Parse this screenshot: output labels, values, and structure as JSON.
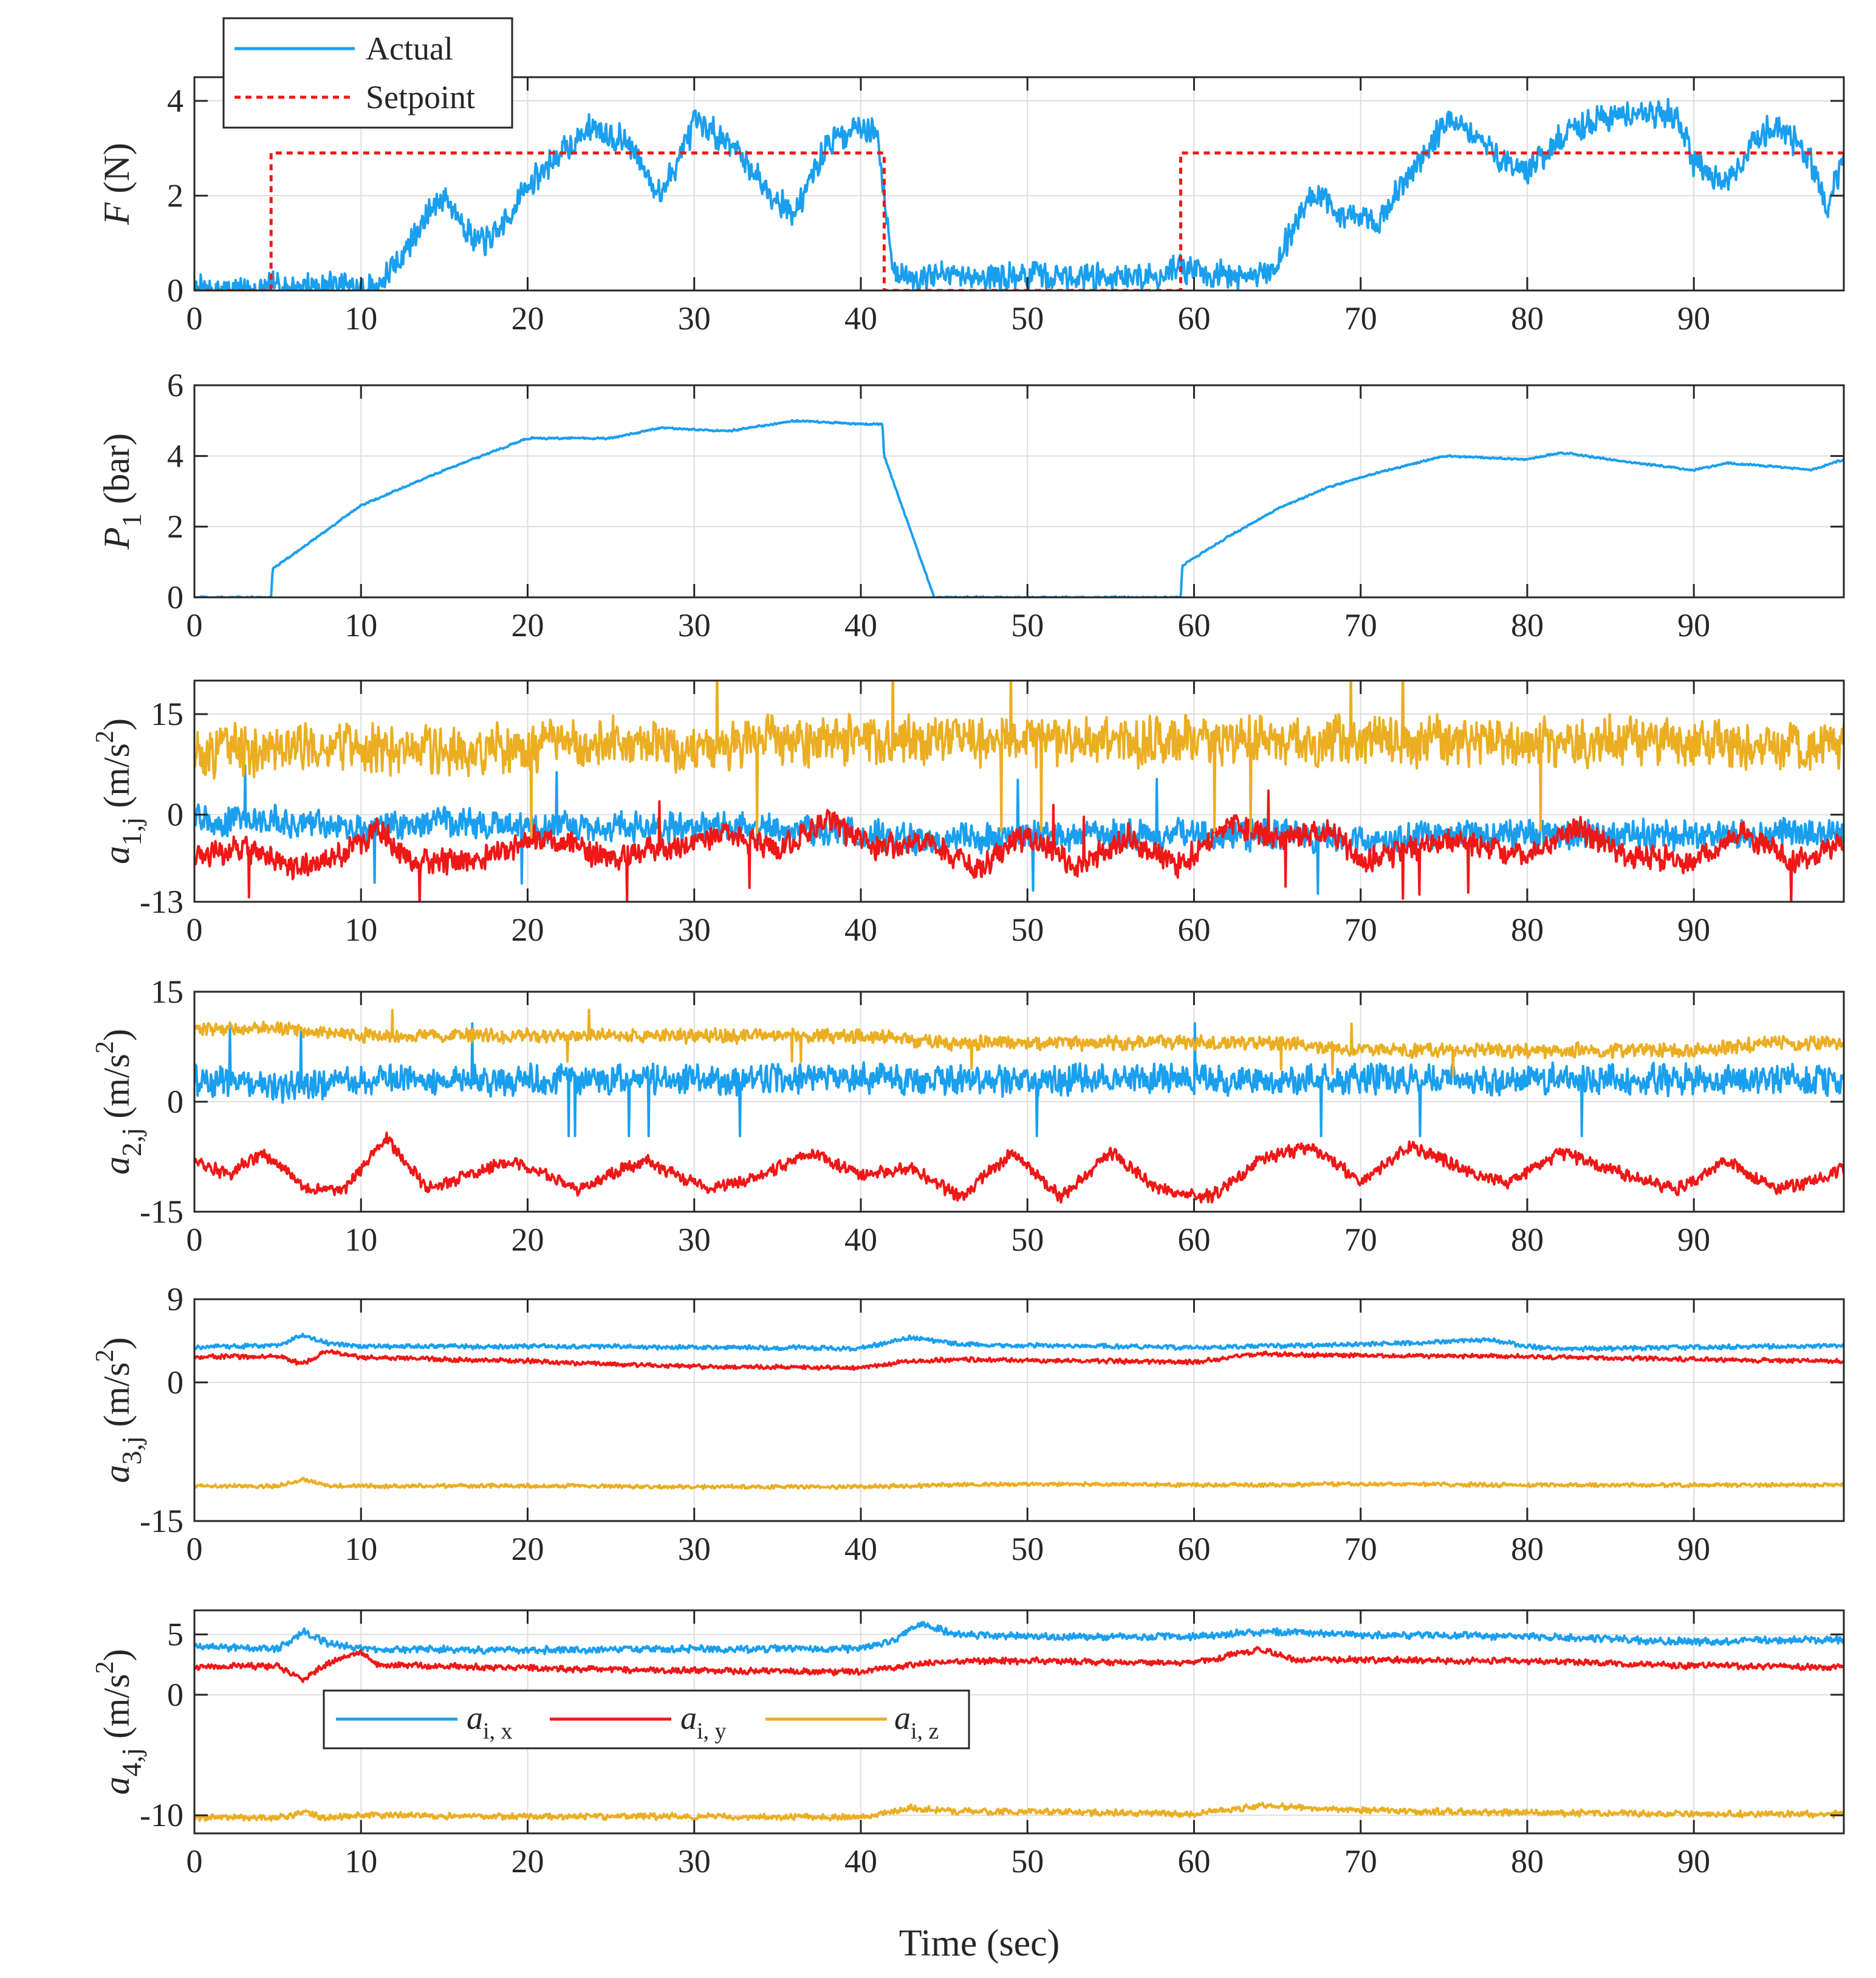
{
  "figure": {
    "xlabel": "Time (sec)",
    "x_ticks": [
      0,
      10,
      20,
      30,
      40,
      50,
      60,
      70,
      80,
      90
    ],
    "xlim": [
      0,
      99
    ]
  },
  "colors": {
    "blue": "#1a9fef",
    "red": "#f01717",
    "yellow": "#ebae22",
    "grid": "#dedede",
    "axes": "#262626"
  },
  "chart_data": [
    {
      "type": "line",
      "ylabel": {
        "main": "F",
        "unit": " (N)"
      },
      "ylim": [
        0,
        4.5
      ],
      "y_ticks": [
        0,
        2,
        4
      ],
      "xlim": [
        0,
        99
      ],
      "grid": true,
      "legend": {
        "placement": "top-left",
        "entries": [
          "Actual",
          "Setpoint"
        ]
      },
      "series": [
        {
          "name": "Actual",
          "color": "blue",
          "style": "solid",
          "noise": 0.35,
          "x": [
            0,
            4,
            5,
            9,
            10,
            11,
            12,
            14,
            15,
            17,
            18,
            20,
            22,
            24,
            26,
            28,
            30,
            32,
            34,
            36,
            38,
            40,
            41,
            42,
            45,
            50,
            55,
            58,
            59,
            62,
            64,
            65,
            67,
            69,
            71,
            73,
            75,
            76,
            78,
            80,
            82,
            84,
            87,
            89,
            90,
            92,
            94,
            95,
            97,
            98,
            99
          ],
          "y": [
            0,
            0,
            0.1,
            0.1,
            0,
            0.1,
            0.5,
            1.6,
            2.0,
            1.0,
            1.1,
            2.2,
            2.9,
            3.5,
            3.1,
            2.0,
            3.5,
            3.2,
            2.3,
            1.6,
            3.1,
            3.5,
            3.3,
            0.3,
            0.3,
            0.3,
            0.3,
            0.3,
            0.5,
            0.3,
            0.3,
            0.6,
            2.1,
            1.6,
            1.4,
            2.5,
            3.5,
            3.5,
            2.9,
            2.5,
            3.2,
            3.6,
            3.8,
            3.7,
            2.7,
            2.2,
            3.3,
            3.5,
            2.8,
            1.7,
            2.8
          ]
        },
        {
          "name": "Setpoint",
          "color": "red",
          "style": "dotted",
          "noise": 0,
          "x": [
            0,
            4.6,
            4.6,
            41.4,
            41.4,
            59.2,
            59.2,
            99
          ],
          "y": [
            0,
            0,
            2.9,
            2.9,
            0,
            0,
            2.9,
            2.9
          ]
        }
      ]
    },
    {
      "type": "line",
      "ylabel": {
        "main": "P",
        "sub": "1",
        "unit": " (bar)"
      },
      "ylim": [
        0,
        6
      ],
      "y_ticks": [
        0,
        2,
        4,
        6
      ],
      "xlim": [
        0,
        99
      ],
      "grid": true,
      "series": [
        {
          "name": "",
          "color": "blue",
          "style": "solid",
          "noise": 0.03,
          "x": [
            0,
            4.6,
            4.7,
            10,
            15,
            20,
            25,
            28,
            32,
            36,
            40,
            41.3,
            41.4,
            44.4,
            59.2,
            59.3,
            62,
            65,
            68,
            70,
            75,
            80,
            82,
            85,
            90,
            92,
            95,
            97,
            99
          ],
          "y": [
            0,
            0,
            0.8,
            2.6,
            3.6,
            4.5,
            4.5,
            4.8,
            4.7,
            5.0,
            4.9,
            4.9,
            4.0,
            0,
            0,
            0.9,
            1.7,
            2.5,
            3.1,
            3.4,
            4.0,
            3.9,
            4.1,
            3.9,
            3.6,
            3.8,
            3.7,
            3.6,
            3.9
          ]
        }
      ]
    },
    {
      "type": "line",
      "ylabel": {
        "main": "a",
        "sub": "1,j",
        "unit": " (m/s",
        "sup": "2",
        "close": ")"
      },
      "ylim": [
        -13,
        20
      ],
      "y_ticks": [
        -13,
        0,
        15
      ],
      "tick_labels": [
        "-13",
        "0",
        "15"
      ],
      "xlim": [
        0,
        99
      ],
      "grid": true,
      "series": [
        {
          "name": "",
          "color": "blue",
          "style": "solid",
          "noise": 2.6,
          "x": [
            0,
            5,
            10,
            15,
            20,
            25,
            30,
            35,
            40,
            45,
            50,
            55,
            60,
            65,
            70,
            75,
            80,
            85,
            90,
            95,
            99
          ],
          "y": [
            -1,
            -1,
            -2,
            -1,
            -2,
            -2,
            -2,
            -2,
            -3,
            -4,
            -3,
            -3,
            -3,
            -3,
            -4,
            -3,
            -3,
            -3,
            -3,
            -3,
            -3
          ]
        },
        {
          "name": "",
          "color": "red",
          "style": "solid",
          "noise": 2.2,
          "x": [
            0,
            3,
            6,
            9,
            11,
            13,
            17,
            21,
            25,
            28,
            32,
            35,
            38,
            41,
            44,
            47,
            50,
            53,
            56,
            59,
            62,
            65,
            68,
            70,
            75,
            80,
            83,
            86,
            90,
            93,
            96,
            99
          ],
          "y": [
            -6,
            -5,
            -8,
            -6,
            -2,
            -7,
            -7,
            -3,
            -7,
            -5,
            -3,
            -5,
            -1,
            -5,
            -4,
            -8,
            -3,
            -8,
            -3,
            -8,
            -1,
            -4,
            -2,
            -7,
            -4,
            -6,
            -2,
            -6,
            -7,
            -3,
            -7,
            -4
          ]
        },
        {
          "name": "",
          "color": "yellow",
          "style": "solid",
          "noise": 4.2,
          "x": [
            0,
            5,
            10,
            15,
            20,
            25,
            30,
            35,
            40,
            45,
            50,
            55,
            60,
            65,
            70,
            75,
            80,
            85,
            90,
            95,
            99
          ],
          "y": [
            9,
            10,
            10,
            9,
            10,
            11,
            10,
            11,
            11,
            11,
            11,
            11,
            11,
            11,
            11,
            11,
            11,
            11,
            11,
            10,
            11
          ]
        }
      ]
    },
    {
      "type": "line",
      "ylabel": {
        "main": "a",
        "sub": "2,j",
        "unit": " (m/s",
        "sup": "2",
        "close": ")"
      },
      "ylim": [
        -15,
        15
      ],
      "y_ticks": [
        -15,
        0,
        15
      ],
      "tick_labels": [
        "-15",
        "0",
        "15"
      ],
      "xlim": [
        0,
        99
      ],
      "grid": true,
      "series": [
        {
          "name": "",
          "color": "blue",
          "style": "solid",
          "noise": 2.4,
          "x": [
            0,
            5,
            10,
            15,
            20,
            25,
            30,
            35,
            40,
            45,
            50,
            55,
            60,
            65,
            70,
            75,
            80,
            85,
            90,
            95,
            99
          ],
          "y": [
            3,
            2,
            3,
            3,
            3,
            3,
            3,
            3,
            3,
            3,
            3,
            3,
            3,
            3,
            3,
            3,
            3,
            3,
            3,
            3,
            3
          ]
        },
        {
          "name": "",
          "color": "red",
          "style": "solid",
          "noise": 1.0,
          "x": [
            0,
            2,
            4,
            7,
            9,
            11.5,
            14,
            19,
            23,
            27,
            31,
            34,
            37,
            40,
            43,
            46,
            49,
            52,
            55,
            58,
            61,
            64,
            67,
            70,
            73,
            77,
            79,
            82,
            86,
            89,
            92,
            95,
            97,
            99
          ],
          "y": [
            -8,
            -10,
            -7,
            -12,
            -12,
            -5,
            -12,
            -8,
            -12,
            -8,
            -12,
            -10,
            -7,
            -10,
            -9,
            -13,
            -7,
            -13,
            -7,
            -12,
            -13,
            -8,
            -6,
            -11,
            -6,
            -10,
            -11,
            -7,
            -10,
            -12,
            -8,
            -12,
            -11,
            -9
          ]
        },
        {
          "name": "",
          "color": "yellow",
          "style": "solid",
          "noise": 1.1,
          "x": [
            0,
            5,
            10,
            15,
            20,
            25,
            30,
            35,
            40,
            45,
            50,
            55,
            60,
            65,
            70,
            75,
            80,
            85,
            90,
            95,
            99
          ],
          "y": [
            10,
            10,
            9,
            9,
            9,
            9,
            9,
            9,
            9,
            8,
            8,
            8,
            8,
            8,
            7,
            7,
            7,
            7,
            7,
            8,
            8
          ]
        }
      ]
    },
    {
      "type": "line",
      "ylabel": {
        "main": "a",
        "sub": "3,j",
        "unit": " (m/s",
        "sup": "2",
        "close": ")"
      },
      "ylim": [
        -15,
        9
      ],
      "y_ticks": [
        -15,
        0,
        9
      ],
      "tick_labels": [
        "-15",
        "0",
        "9"
      ],
      "xlim": [
        0,
        99
      ],
      "grid": true,
      "series": [
        {
          "name": "",
          "color": "blue",
          "style": "solid",
          "noise": 0.28,
          "x": [
            0,
            5,
            6.5,
            8,
            10,
            20,
            30,
            40,
            43,
            46,
            50,
            60,
            70,
            78,
            80,
            82,
            90,
            99
          ],
          "y": [
            3.8,
            4.0,
            5.1,
            4.2,
            3.9,
            3.9,
            3.8,
            3.7,
            4.9,
            4.1,
            4.0,
            3.8,
            4.1,
            4.6,
            3.9,
            3.6,
            3.8,
            4.0
          ]
        },
        {
          "name": "",
          "color": "red",
          "style": "solid",
          "noise": 0.28,
          "x": [
            0,
            5,
            6.5,
            8,
            10,
            20,
            30,
            40,
            43,
            46,
            50,
            60,
            64,
            70,
            80,
            90,
            99
          ],
          "y": [
            2.8,
            2.8,
            2.0,
            3.4,
            2.7,
            2.3,
            1.7,
            1.6,
            2.3,
            2.5,
            2.4,
            2.2,
            3.1,
            2.9,
            2.8,
            2.5,
            2.3
          ]
        },
        {
          "name": "",
          "color": "yellow",
          "style": "solid",
          "noise": 0.25,
          "x": [
            0,
            5,
            6.5,
            8,
            10,
            20,
            30,
            40,
            45,
            50,
            60,
            70,
            80,
            90,
            99
          ],
          "y": [
            -11.2,
            -11.2,
            -10.5,
            -11.2,
            -11.2,
            -11.2,
            -11.3,
            -11.3,
            -11.1,
            -11.0,
            -11.1,
            -11.0,
            -11.1,
            -11.1,
            -11.1
          ]
        }
      ]
    },
    {
      "type": "line",
      "ylabel": {
        "main": "a",
        "sub": "4,j",
        "unit": " (m/s",
        "sup": "2",
        "close": ")"
      },
      "ylim": [
        -11.5,
        7
      ],
      "y_ticks": [
        -10,
        0,
        5
      ],
      "tick_labels": [
        "-10",
        "0",
        "5"
      ],
      "xlim": [
        0,
        99
      ],
      "grid": true,
      "legend": {
        "placement": "lower-left",
        "entries": [
          "i, x",
          "i, y",
          "i, z"
        ]
      },
      "series": [
        {
          "name": "a i, x",
          "color": "blue",
          "style": "solid",
          "noise": 0.35,
          "x": [
            0,
            5,
            6.5,
            8,
            10,
            20,
            30,
            40,
            42,
            43.5,
            46,
            50,
            60,
            64,
            70,
            80,
            90,
            99
          ],
          "y": [
            4.0,
            3.8,
            5.2,
            4.3,
            3.8,
            3.7,
            3.8,
            3.8,
            4.5,
            5.8,
            5.0,
            4.8,
            4.8,
            5.2,
            5.0,
            4.8,
            4.4,
            4.6
          ]
        },
        {
          "name": "a i, y",
          "color": "red",
          "style": "solid",
          "noise": 0.3,
          "x": [
            0,
            5,
            6.5,
            8,
            10,
            11,
            20,
            30,
            40,
            42,
            45,
            50,
            60,
            64,
            66,
            70,
            80,
            90,
            99
          ],
          "y": [
            2.3,
            2.4,
            1.2,
            2.6,
            3.6,
            2.5,
            2.2,
            2.0,
            1.9,
            2.3,
            2.8,
            2.8,
            2.6,
            3.8,
            2.9,
            2.9,
            2.8,
            2.4,
            2.3
          ]
        },
        {
          "name": "a i, z",
          "color": "yellow",
          "style": "solid",
          "noise": 0.3,
          "x": [
            0,
            5,
            6.5,
            8,
            10,
            20,
            30,
            40,
            43,
            46,
            50,
            60,
            64,
            70,
            80,
            90,
            99
          ],
          "y": [
            -10.2,
            -10.2,
            -9.8,
            -10.2,
            -10.0,
            -10.1,
            -10.1,
            -10.2,
            -9.4,
            -9.7,
            -9.7,
            -9.9,
            -9.2,
            -9.6,
            -9.8,
            -9.9,
            -9.9
          ]
        }
      ]
    }
  ]
}
